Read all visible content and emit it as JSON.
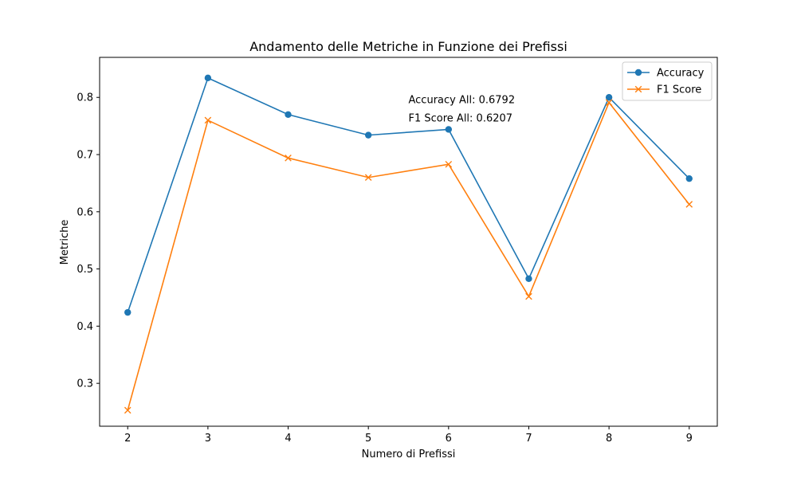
{
  "chart_data": {
    "type": "line",
    "title": "Andamento delle Metriche in Funzione dei Prefissi",
    "xlabel": "Numero di Prefissi",
    "ylabel": "Metriche",
    "x": [
      2,
      3,
      4,
      5,
      6,
      7,
      8,
      9
    ],
    "xlim": [
      1.65,
      9.35
    ],
    "ylim": [
      0.225,
      0.87
    ],
    "xticks": [
      "2",
      "3",
      "4",
      "5",
      "6",
      "7",
      "8",
      "9"
    ],
    "yticks": [
      "0.3",
      "0.4",
      "0.5",
      "0.6",
      "0.7",
      "0.8"
    ],
    "ytick_values": [
      0.3,
      0.4,
      0.5,
      0.6,
      0.7,
      0.8
    ],
    "grid": false,
    "legend_position": "top-right",
    "series": [
      {
        "name": "Accuracy",
        "color": "#1f77b4",
        "marker": "circle",
        "values": [
          0.424,
          0.834,
          0.77,
          0.734,
          0.744,
          0.483,
          0.8,
          0.658
        ]
      },
      {
        "name": "F1 Score",
        "color": "#ff7f0e",
        "marker": "x",
        "values": [
          0.253,
          0.76,
          0.694,
          0.66,
          0.683,
          0.452,
          0.791,
          0.613
        ]
      }
    ],
    "annotations": [
      {
        "text": "Accuracy All: 0.6792",
        "x": 5.5,
        "y": 0.79
      },
      {
        "text": "F1 Score All: 0.6207",
        "x": 5.5,
        "y": 0.758
      }
    ]
  }
}
